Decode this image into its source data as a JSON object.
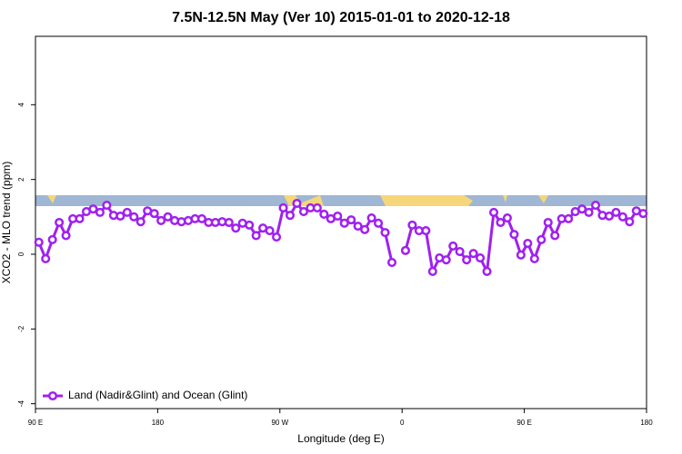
{
  "chart_data": {
    "type": "line",
    "title": "7.5N-12.5N May (Ver 10)   2015-01-01 to 2020-12-18",
    "x_label": "Longitude (deg E)",
    "y_label": "XCO2 - MLO trend (ppm)",
    "xlim": [
      90,
      540
    ],
    "xticks": [
      {
        "value": 90,
        "label": "90 E"
      },
      180,
      {
        "value": 270,
        "label": "90 W"
      },
      {
        "value": 360,
        "label": "0"
      },
      {
        "value": 450,
        "label": "90 E"
      },
      {
        "value": 540,
        "label": "180"
      }
    ],
    "ylim": [
      -4.13,
      5.83
    ],
    "yticks": [
      -4,
      -2,
      0,
      2,
      4
    ],
    "legend": "bottom-left",
    "x": [
      92.5,
      97.5,
      102.5,
      107.5,
      112.5,
      117.5,
      122.5,
      127.5,
      132.5,
      137.5,
      142.5,
      147.5,
      152.5,
      157.5,
      162.5,
      167.5,
      172.5,
      177.5,
      182.5,
      187.5,
      192.5,
      197.5,
      202.5,
      207.5,
      212.5,
      217.5,
      222.5,
      227.5,
      232.5,
      237.5,
      242.5,
      247.5,
      252.5,
      257.5,
      262.5,
      267.5,
      272.5,
      277.5,
      282.5,
      287.5,
      292.5,
      297.5,
      302.5,
      307.5,
      312.5,
      317.5,
      322.5,
      327.5,
      332.5,
      337.5,
      342.5,
      347.5,
      352.5,
      357.5,
      362.5,
      367.5,
      372.5,
      377.5,
      382.5,
      387.5,
      392.5,
      397.5,
      402.5,
      407.5,
      412.5,
      417.5,
      422.5,
      427.5,
      432.5,
      437.5,
      442.5,
      447.5,
      452.5,
      457.5,
      462.5,
      467.5,
      472.5,
      477.5,
      482.5,
      487.5,
      492.5,
      497.5,
      502.5,
      507.5,
      512.5,
      517.5,
      522.5,
      527.5,
      532.5,
      537.5
    ],
    "series": [
      {
        "name": "Land (Nadir&Glint) and Ocean (Glint)",
        "color": "#a020f0",
        "values": [
          0.32,
          -0.12,
          0.39,
          0.85,
          0.5,
          0.95,
          0.95,
          1.14,
          1.21,
          1.12,
          1.31,
          1.04,
          1.02,
          1.12,
          1.0,
          0.87,
          1.16,
          1.09,
          0.9,
          1.0,
          0.9,
          0.87,
          0.9,
          0.95,
          0.95,
          0.85,
          0.85,
          0.87,
          0.85,
          0.7,
          0.83,
          0.78,
          0.5,
          0.7,
          0.63,
          0.46,
          1.24,
          1.04,
          1.36,
          1.14,
          1.24,
          1.24,
          1.07,
          0.95,
          1.02,
          0.83,
          0.92,
          0.75,
          0.66,
          0.97,
          0.83,
          0.58,
          -0.22,
          null,
          0.1,
          0.78,
          0.63,
          0.63,
          -0.46,
          -0.1,
          -0.15,
          0.22,
          0.07,
          -0.15,
          0.02,
          -0.1,
          -0.46,
          1.12,
          0.85,
          0.97,
          0.53,
          -0.02,
          0.29,
          -0.12,
          0.39,
          0.85,
          0.5,
          0.95,
          0.95,
          1.14,
          1.21,
          1.12,
          1.31,
          1.04,
          1.02,
          1.12,
          1.0,
          0.87,
          1.16,
          1.09
        ]
      }
    ]
  }
}
